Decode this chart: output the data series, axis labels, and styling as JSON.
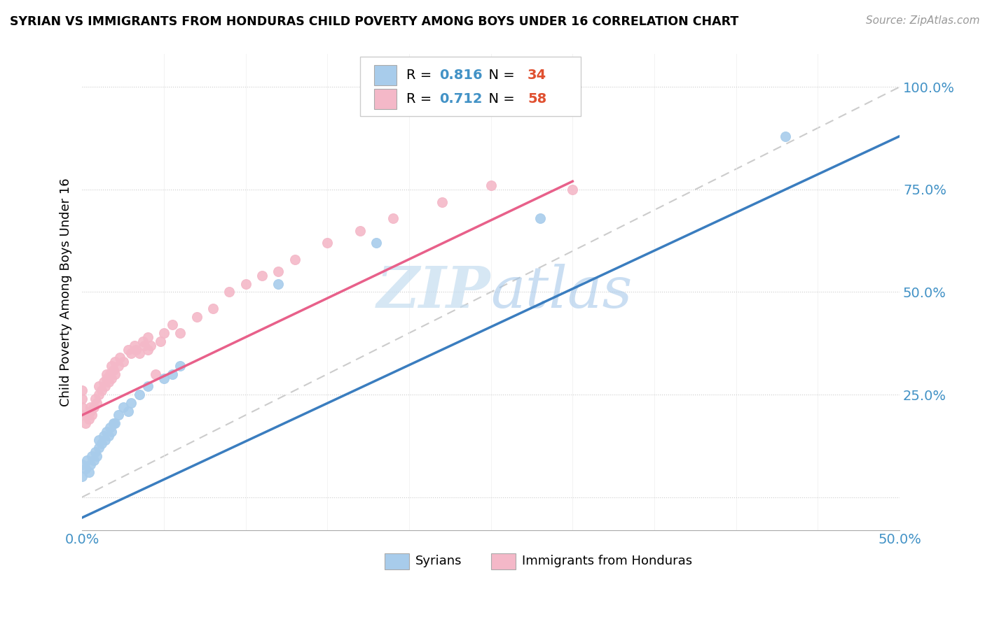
{
  "title": "SYRIAN VS IMMIGRANTS FROM HONDURAS CHILD POVERTY AMONG BOYS UNDER 16 CORRELATION CHART",
  "source": "Source: ZipAtlas.com",
  "ylabel": "Child Poverty Among Boys Under 16",
  "xlim": [
    0.0,
    0.5
  ],
  "ylim": [
    -0.08,
    1.08
  ],
  "yticks": [
    0.0,
    0.25,
    0.5,
    0.75,
    1.0
  ],
  "ytick_labels": [
    "",
    "25.0%",
    "50.0%",
    "75.0%",
    "100.0%"
  ],
  "xtick_left": "0.0%",
  "xtick_right": "50.0%",
  "legend_r_blue": "0.816",
  "legend_n_blue": "34",
  "legend_r_pink": "0.712",
  "legend_n_pink": "58",
  "blue_scatter_color": "#a8cceb",
  "pink_scatter_color": "#f4b8c8",
  "line_blue": "#3a7dbf",
  "line_pink": "#e8608a",
  "ref_line_color": "#cccccc",
  "watermark_color": "#c5ddf0",
  "syrians_x": [
    0.0,
    0.0,
    0.002,
    0.003,
    0.004,
    0.005,
    0.006,
    0.007,
    0.008,
    0.009,
    0.01,
    0.01,
    0.012,
    0.013,
    0.014,
    0.015,
    0.016,
    0.017,
    0.018,
    0.019,
    0.02,
    0.022,
    0.025,
    0.028,
    0.03,
    0.035,
    0.04,
    0.05,
    0.055,
    0.06,
    0.12,
    0.18,
    0.28,
    0.43
  ],
  "syrians_y": [
    0.05,
    0.08,
    0.07,
    0.09,
    0.06,
    0.08,
    0.1,
    0.09,
    0.11,
    0.1,
    0.12,
    0.14,
    0.13,
    0.15,
    0.14,
    0.16,
    0.15,
    0.17,
    0.16,
    0.18,
    0.18,
    0.2,
    0.22,
    0.21,
    0.23,
    0.25,
    0.27,
    0.29,
    0.3,
    0.32,
    0.52,
    0.62,
    0.68,
    0.88
  ],
  "honduras_x": [
    0.0,
    0.0,
    0.0,
    0.0,
    0.002,
    0.003,
    0.004,
    0.005,
    0.005,
    0.006,
    0.007,
    0.008,
    0.009,
    0.01,
    0.01,
    0.012,
    0.013,
    0.014,
    0.015,
    0.015,
    0.016,
    0.017,
    0.018,
    0.018,
    0.019,
    0.02,
    0.02,
    0.022,
    0.023,
    0.025,
    0.028,
    0.03,
    0.032,
    0.033,
    0.035,
    0.037,
    0.038,
    0.04,
    0.04,
    0.042,
    0.045,
    0.048,
    0.05,
    0.055,
    0.06,
    0.07,
    0.08,
    0.09,
    0.1,
    0.11,
    0.12,
    0.13,
    0.15,
    0.17,
    0.19,
    0.22,
    0.25,
    0.3
  ],
  "honduras_y": [
    0.2,
    0.22,
    0.24,
    0.26,
    0.18,
    0.2,
    0.19,
    0.21,
    0.22,
    0.2,
    0.22,
    0.24,
    0.23,
    0.25,
    0.27,
    0.26,
    0.28,
    0.27,
    0.29,
    0.3,
    0.28,
    0.3,
    0.29,
    0.32,
    0.31,
    0.3,
    0.33,
    0.32,
    0.34,
    0.33,
    0.36,
    0.35,
    0.37,
    0.36,
    0.35,
    0.38,
    0.37,
    0.36,
    0.39,
    0.37,
    0.3,
    0.38,
    0.4,
    0.42,
    0.4,
    0.44,
    0.46,
    0.5,
    0.52,
    0.54,
    0.55,
    0.58,
    0.62,
    0.65,
    0.68,
    0.72,
    0.76,
    0.75
  ],
  "blue_line_x0": 0.0,
  "blue_line_y0": -0.05,
  "blue_line_x1": 0.5,
  "blue_line_y1": 0.88,
  "pink_line_x0": 0.0,
  "pink_line_y0": 0.2,
  "pink_line_x1": 0.3,
  "pink_line_y1": 0.77
}
